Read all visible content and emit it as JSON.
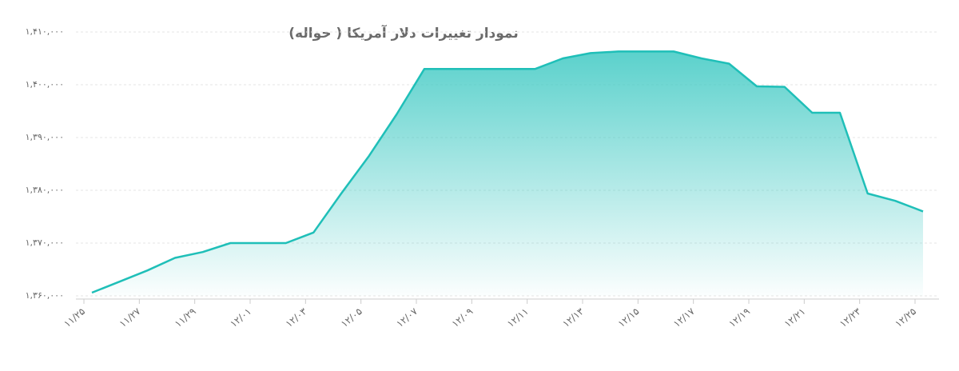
{
  "chart_data": {
    "type": "area",
    "title": "نمودار تغییرات دلار آمریکا ( حواله)",
    "categories": [
      "۱۱/۲۵",
      null,
      "۱۱/۲۷",
      null,
      "۱۱/۲۹",
      null,
      "۱۲/۰۱",
      null,
      "۱۲/۰۳",
      null,
      "۱۲/۰۵",
      null,
      "۱۲/۰۷",
      null,
      "۱۲/۰۹",
      null,
      "۱۲/۱۱",
      null,
      "۱۲/۱۳",
      null,
      "۱۲/۱۵",
      null,
      "۱۲/۱۷",
      null,
      "۱۲/۱۹",
      null,
      "۱۲/۲۱",
      null,
      "۱۲/۲۳",
      null,
      "۱۲/۲۵"
    ],
    "values": [
      1360600,
      1362700,
      1364800,
      1367200,
      1368300,
      1370000,
      1370000,
      1370000,
      1372000,
      1379400,
      1386500,
      1394400,
      1403000,
      1403000,
      1403000,
      1403000,
      1403000,
      1405000,
      1406000,
      1406300,
      1406300,
      1406300,
      1405000,
      1404000,
      1399700,
      1399600,
      1394700,
      1394700,
      1379400,
      1378000,
      1376000
    ],
    "color": "#1fbfb8",
    "ylim": [
      1360000,
      1410000
    ],
    "yticks": [
      {
        "value": 1360000,
        "label": "۱,۳۶۰,۰۰۰"
      },
      {
        "value": 1370000,
        "label": "۱,۳۷۰,۰۰۰"
      },
      {
        "value": 1380000,
        "label": "۱,۳۸۰,۰۰۰"
      },
      {
        "value": 1390000,
        "label": "۱,۳۹۰,۰۰۰"
      },
      {
        "value": 1400000,
        "label": "۱,۴۰۰,۰۰۰"
      },
      {
        "value": 1410000,
        "label": "۱,۴۱۰,۰۰۰"
      }
    ],
    "grid": true
  }
}
